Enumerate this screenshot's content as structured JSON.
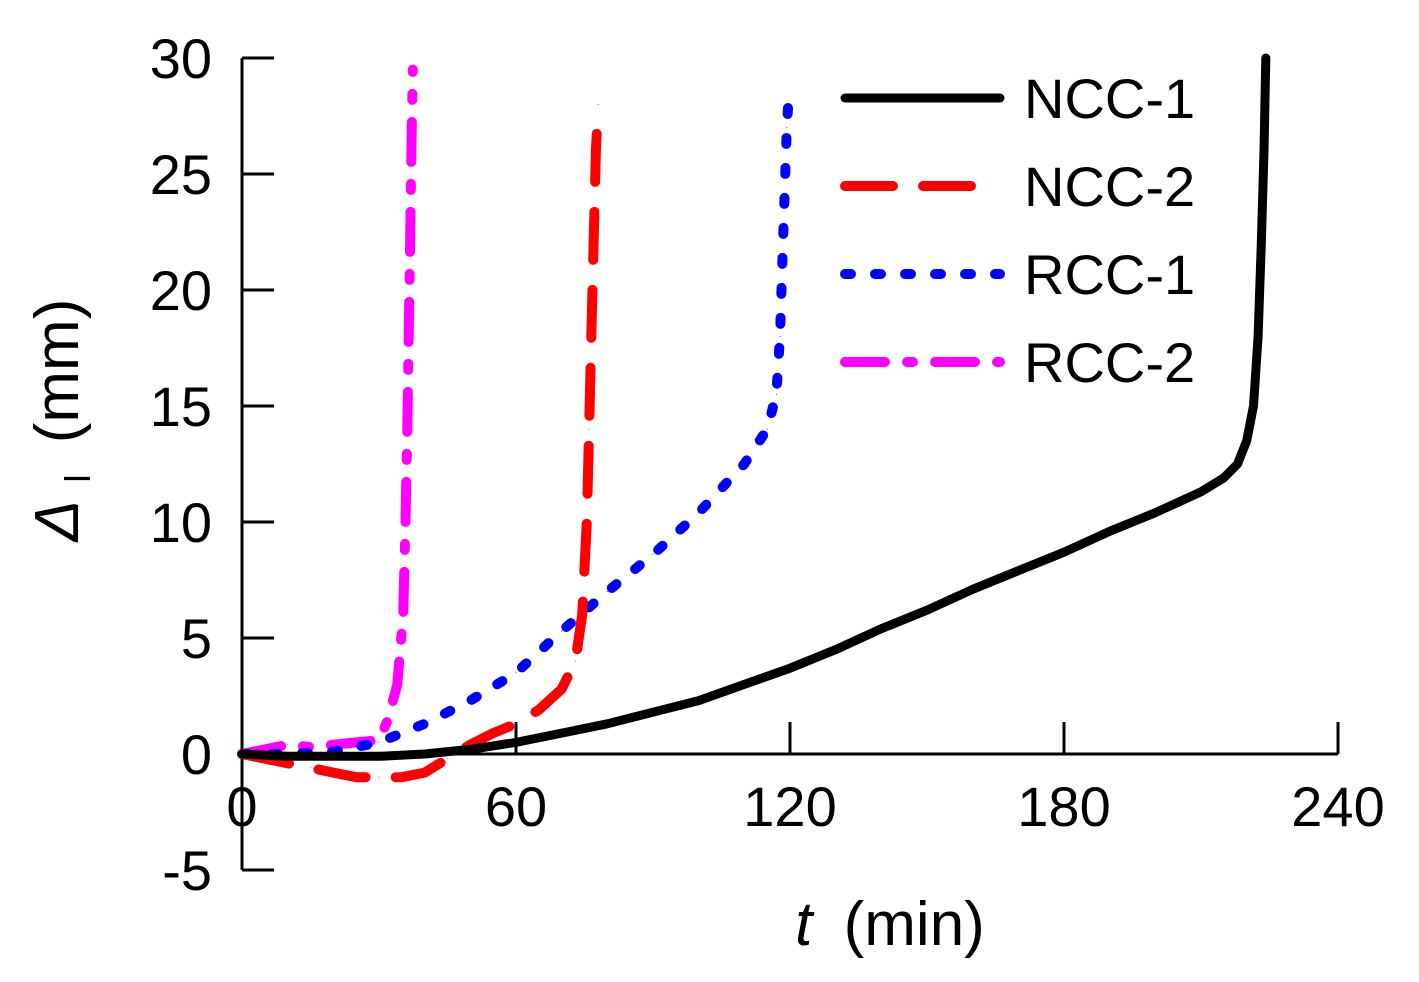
{
  "chart_data": {
    "type": "line",
    "title": "",
    "xlabel": {
      "symbol": "t",
      "unit": "(min)"
    },
    "ylabel": {
      "symbol": "Δ",
      "subscript": "l",
      "unit": "(mm)"
    },
    "xlim": [
      0,
      240
    ],
    "ylim": [
      -5,
      30
    ],
    "xticks": [
      0,
      60,
      120,
      180,
      240
    ],
    "yticks": [
      -5,
      0,
      5,
      10,
      15,
      20,
      25,
      30
    ],
    "grid": false,
    "legend": "top-right",
    "series": [
      {
        "name": "NCC-1",
        "color": "#000000",
        "style": "solid",
        "points": [
          [
            0,
            0
          ],
          [
            10,
            -0.1
          ],
          [
            20,
            -0.1
          ],
          [
            30,
            -0.1
          ],
          [
            40,
            0
          ],
          [
            50,
            0.2
          ],
          [
            60,
            0.5
          ],
          [
            70,
            0.9
          ],
          [
            80,
            1.3
          ],
          [
            90,
            1.8
          ],
          [
            100,
            2.3
          ],
          [
            110,
            3
          ],
          [
            120,
            3.7
          ],
          [
            130,
            4.5
          ],
          [
            140,
            5.4
          ],
          [
            150,
            6.2
          ],
          [
            160,
            7.1
          ],
          [
            170,
            7.9
          ],
          [
            180,
            8.7
          ],
          [
            190,
            9.6
          ],
          [
            200,
            10.4
          ],
          [
            210,
            11.3
          ],
          [
            215,
            11.9
          ],
          [
            218,
            12.5
          ],
          [
            220,
            13.5
          ],
          [
            221.5,
            15
          ],
          [
            222.5,
            18
          ],
          [
            223.2,
            22
          ],
          [
            223.8,
            26
          ],
          [
            224.2,
            30
          ]
        ]
      },
      {
        "name": "NCC-2",
        "color": "#ff0000",
        "style": "dash",
        "points": [
          [
            0,
            0
          ],
          [
            5,
            -0.2
          ],
          [
            10,
            -0.4
          ],
          [
            15,
            -0.6
          ],
          [
            20,
            -0.8
          ],
          [
            25,
            -1
          ],
          [
            30,
            -1
          ],
          [
            35,
            -1
          ],
          [
            40,
            -0.8
          ],
          [
            45,
            -0.2
          ],
          [
            50,
            0.4
          ],
          [
            55,
            0.9
          ],
          [
            60,
            1.3
          ],
          [
            65,
            1.9
          ],
          [
            70,
            2.8
          ],
          [
            73,
            4
          ],
          [
            74.5,
            6
          ],
          [
            75.5,
            10
          ],
          [
            76,
            14
          ],
          [
            76.5,
            18
          ],
          [
            77,
            22
          ],
          [
            77.5,
            26
          ],
          [
            78,
            28
          ]
        ]
      },
      {
        "name": "RCC-1",
        "color": "#0000ff",
        "style": "dot",
        "points": [
          [
            0,
            0
          ],
          [
            10,
            0
          ],
          [
            20,
            0.1
          ],
          [
            30,
            0.5
          ],
          [
            40,
            1.3
          ],
          [
            50,
            2.3
          ],
          [
            60,
            3.5
          ],
          [
            70,
            5.3
          ],
          [
            80,
            7
          ],
          [
            90,
            8.6
          ],
          [
            100,
            10.4
          ],
          [
            110,
            12.5
          ],
          [
            115,
            14
          ],
          [
            117,
            15.5
          ],
          [
            117.8,
            18
          ],
          [
            118.3,
            21
          ],
          [
            118.8,
            24
          ],
          [
            119.3,
            27
          ],
          [
            119.6,
            28
          ]
        ]
      },
      {
        "name": "RCC-2",
        "color": "#ff00ff",
        "style": "dashdot",
        "points": [
          [
            0,
            0
          ],
          [
            5,
            0.2
          ],
          [
            10,
            0.4
          ],
          [
            15,
            0.3
          ],
          [
            20,
            0.4
          ],
          [
            25,
            0.5
          ],
          [
            30,
            0.6
          ],
          [
            32,
            1.5
          ],
          [
            34,
            3
          ],
          [
            35.3,
            6
          ],
          [
            35.8,
            10
          ],
          [
            36.2,
            14
          ],
          [
            36.5,
            18
          ],
          [
            36.8,
            22
          ],
          [
            37.1,
            26
          ],
          [
            37.4,
            29.5
          ]
        ]
      }
    ]
  }
}
